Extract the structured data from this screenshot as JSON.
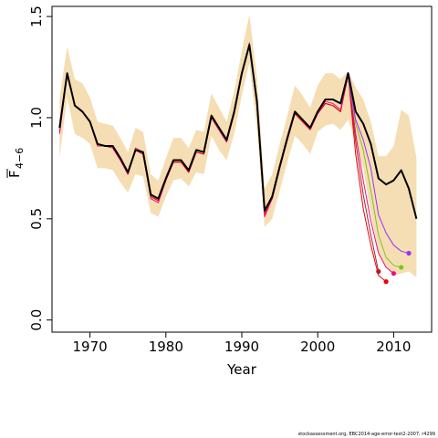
{
  "chart_data": {
    "type": "line",
    "xlabel": "Year",
    "ylabel": "F",
    "ylabel_sub": "4−6",
    "xlim": [
      1965,
      2015
    ],
    "ylim": [
      -0.06,
      1.55
    ],
    "xticks": [
      1970,
      1980,
      1990,
      2000,
      2010
    ],
    "yticks": [
      0.0,
      0.5,
      1.0,
      1.5
    ],
    "ytick_labels": [
      "0.0",
      "0.5",
      "1.0",
      "1.5"
    ],
    "grid": false,
    "band_color": "#F5DEB3",
    "ci_band": {
      "x": [
        1966,
        1967,
        1968,
        1969,
        1970,
        1971,
        1972,
        1973,
        1974,
        1975,
        1976,
        1977,
        1978,
        1979,
        1980,
        1981,
        1982,
        1983,
        1984,
        1985,
        1986,
        1987,
        1988,
        1989,
        1990,
        1991,
        1992,
        1993,
        1994,
        1995,
        1996,
        1997,
        1998,
        1999,
        2000,
        2001,
        2002,
        2003,
        2004,
        2005,
        2006,
        2007,
        2008,
        2009,
        2010,
        2011,
        2012,
        2013
      ],
      "upper": [
        1.1,
        1.35,
        1.19,
        1.17,
        1.1,
        0.98,
        0.97,
        0.96,
        0.9,
        0.83,
        0.95,
        0.93,
        0.72,
        0.69,
        0.8,
        0.9,
        0.9,
        0.85,
        0.94,
        0.93,
        1.12,
        1.05,
        0.98,
        1.13,
        1.33,
        1.51,
        1.2,
        0.65,
        0.72,
        0.87,
        1.01,
        1.16,
        1.11,
        1.05,
        1.16,
        1.22,
        1.22,
        1.19,
        1.23,
        1.15,
        1.09,
        0.98,
        0.81,
        0.81,
        0.86,
        1.04,
        1.01,
        0.8
      ],
      "lower": [
        0.8,
        1.1,
        0.92,
        0.9,
        0.87,
        0.75,
        0.75,
        0.74,
        0.68,
        0.63,
        0.72,
        0.71,
        0.53,
        0.51,
        0.61,
        0.69,
        0.7,
        0.66,
        0.73,
        0.72,
        0.91,
        0.84,
        0.79,
        0.92,
        1.11,
        1.27,
        0.94,
        0.46,
        0.5,
        0.64,
        0.78,
        0.91,
        0.87,
        0.82,
        0.93,
        0.96,
        0.97,
        0.94,
        0.99,
        0.88,
        0.75,
        0.53,
        0.33,
        0.26,
        0.22,
        0.23,
        0.24,
        0.21
      ]
    },
    "series": [
      {
        "color": "#000000",
        "x": [
          1966,
          1967,
          1968,
          1969,
          1970,
          1971,
          1972,
          1973,
          1974,
          1975,
          1976,
          1977,
          1978,
          1979,
          1980,
          1981,
          1982,
          1983,
          1984,
          1985,
          1986,
          1987,
          1988,
          1989,
          1990,
          1991,
          1992,
          1993,
          1994,
          1995,
          1996,
          1997,
          1998,
          1999,
          2000,
          2001,
          2002,
          2003,
          2004,
          2005,
          2006,
          2007,
          2008,
          2009,
          2010,
          2011,
          2012,
          2013
        ],
        "y": [
          0.95,
          1.22,
          1.06,
          1.03,
          0.98,
          0.87,
          0.86,
          0.86,
          0.8,
          0.73,
          0.84,
          0.83,
          0.62,
          0.6,
          0.7,
          0.79,
          0.79,
          0.74,
          0.84,
          0.83,
          1.01,
          0.95,
          0.89,
          1.03,
          1.22,
          1.36,
          1.08,
          0.54,
          0.61,
          0.76,
          0.9,
          1.03,
          0.99,
          0.95,
          1.03,
          1.09,
          1.09,
          1.07,
          1.22,
          1.03,
          0.97,
          0.87,
          0.7,
          0.67,
          0.69,
          0.74,
          0.65,
          0.5
        ]
      },
      {
        "color": "#B22222",
        "x": [
          1966,
          1967,
          1968,
          1969,
          1970,
          1971,
          1972,
          1973,
          1974,
          1975,
          1976,
          1977,
          1978,
          1979,
          1980,
          1981,
          1982,
          1983,
          1984,
          1985,
          1986,
          1987,
          1988,
          1989,
          1990,
          1991,
          1992,
          1993,
          1994,
          1995,
          1996,
          1997,
          1998,
          1999,
          2000,
          2001,
          2002,
          2003,
          2004,
          2005,
          2006,
          2007,
          2008
        ],
        "y": [
          0.93,
          1.22,
          1.06,
          1.03,
          0.98,
          0.86,
          0.86,
          0.85,
          0.79,
          0.72,
          0.84,
          0.82,
          0.61,
          0.59,
          0.69,
          0.78,
          0.78,
          0.73,
          0.83,
          0.82,
          1.0,
          0.94,
          0.88,
          1.02,
          1.21,
          1.36,
          1.06,
          0.52,
          0.6,
          0.75,
          0.89,
          1.02,
          0.98,
          0.94,
          1.02,
          1.07,
          1.06,
          1.03,
          1.21,
          0.88,
          0.62,
          0.42,
          0.24
        ]
      },
      {
        "color": "#E8000B",
        "x": [
          1966,
          1967,
          1968,
          1969,
          1970,
          1971,
          1972,
          1973,
          1974,
          1975,
          1976,
          1977,
          1978,
          1979,
          1980,
          1981,
          1982,
          1983,
          1984,
          1985,
          1986,
          1987,
          1988,
          1989,
          1990,
          1991,
          1992,
          1993,
          1994,
          1995,
          1996,
          1997,
          1998,
          1999,
          2000,
          2001,
          2002,
          2003,
          2004,
          2005,
          2006,
          2007,
          2008,
          2009
        ],
        "y": [
          0.93,
          1.22,
          1.06,
          1.03,
          0.98,
          0.86,
          0.86,
          0.85,
          0.79,
          0.72,
          0.84,
          0.82,
          0.61,
          0.59,
          0.69,
          0.78,
          0.78,
          0.73,
          0.83,
          0.82,
          1.0,
          0.94,
          0.88,
          1.02,
          1.21,
          1.36,
          1.06,
          0.52,
          0.6,
          0.75,
          0.89,
          1.02,
          0.98,
          0.94,
          1.02,
          1.07,
          1.06,
          1.03,
          1.21,
          0.82,
          0.55,
          0.37,
          0.22,
          0.19
        ]
      },
      {
        "color": "#E8117F",
        "x": [
          1966,
          1967,
          1968,
          1969,
          1970,
          1971,
          1972,
          1973,
          1974,
          1975,
          1976,
          1977,
          1978,
          1979,
          1980,
          1981,
          1982,
          1983,
          1984,
          1985,
          1986,
          1987,
          1988,
          1989,
          1990,
          1991,
          1992,
          1993,
          1994,
          1995,
          1996,
          1997,
          1998,
          1999,
          2000,
          2001,
          2002,
          2003,
          2004,
          2005,
          2006,
          2007,
          2008,
          2009,
          2010
        ],
        "y": [
          0.92,
          1.22,
          1.06,
          1.03,
          0.98,
          0.86,
          0.86,
          0.85,
          0.79,
          0.72,
          0.85,
          0.83,
          0.6,
          0.58,
          0.69,
          0.79,
          0.79,
          0.74,
          0.84,
          0.83,
          1.0,
          0.94,
          0.88,
          1.03,
          1.22,
          1.37,
          1.07,
          0.51,
          0.6,
          0.75,
          0.89,
          1.03,
          0.99,
          0.94,
          1.02,
          1.08,
          1.07,
          1.04,
          1.21,
          0.92,
          0.69,
          0.49,
          0.33,
          0.26,
          0.23
        ]
      },
      {
        "color": "#7FC31C",
        "x": [
          2004,
          2005,
          2006,
          2007,
          2008,
          2009,
          2010,
          2011
        ],
        "y": [
          1.2,
          0.97,
          0.84,
          0.64,
          0.42,
          0.31,
          0.27,
          0.26
        ]
      },
      {
        "color": "#9B30FF",
        "x": [
          2004,
          2005,
          2006,
          2007,
          2008,
          2009,
          2010,
          2011,
          2012
        ],
        "y": [
          1.2,
          0.99,
          0.89,
          0.75,
          0.52,
          0.43,
          0.37,
          0.34,
          0.33
        ]
      }
    ]
  },
  "footnote": "stockassessment.org, EBC2014-age-error-test2-2007, r4299"
}
